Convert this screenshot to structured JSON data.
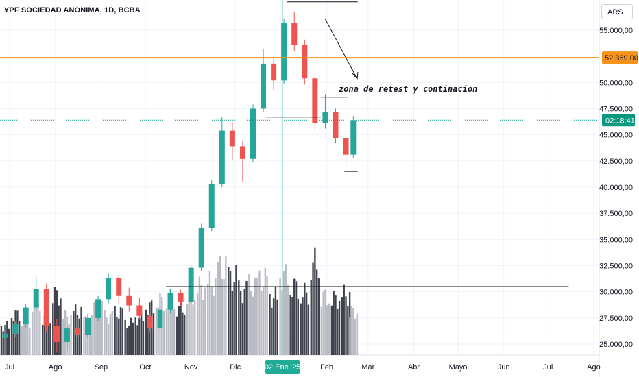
{
  "header": {
    "title": "YPF SOCIEDAD ANONIMA, 1D, BCBA",
    "currency": "ARS"
  },
  "annotations": {
    "text": "zona de retest y continacion"
  },
  "chart_data": {
    "type": "candlestick",
    "title": "YPF SOCIEDAD ANONIMA, 1D, BCBA",
    "ylim": [
      23800,
      58500
    ],
    "y_ticks": [
      {
        "value": 55000,
        "label": "55.000,00"
      },
      {
        "value": 50000,
        "label": "50.000,00"
      },
      {
        "value": 47500,
        "label": "47.500,00"
      },
      {
        "value": 45000,
        "label": "45.000,00"
      },
      {
        "value": 42500,
        "label": "42.500,00"
      },
      {
        "value": 40000,
        "label": "40.000,00"
      },
      {
        "value": 37500,
        "label": "37.500,00"
      },
      {
        "value": 35000,
        "label": "35.000,00"
      },
      {
        "value": 32500,
        "label": "32.500,00"
      },
      {
        "value": 30000,
        "label": "30.000,00"
      },
      {
        "value": 27500,
        "label": "27.500,00"
      },
      {
        "value": 25000,
        "label": "25.000,00"
      }
    ],
    "x_ticks": [
      "Jul",
      "Ago",
      "Sep",
      "Oct",
      "Nov",
      "Dic",
      "Feb",
      "Mar",
      "Abr",
      "Mayo",
      "Jun",
      "Jul",
      "Ago"
    ],
    "crosshair_date_label": "02 Ene '25",
    "horizontal_level": {
      "value": 52369,
      "label": "52.369,00",
      "color": "#f7931a"
    },
    "last_price_tag": {
      "label": "02:18:41",
      "value": 46400,
      "color": "#089981"
    },
    "drawn_levels": [
      {
        "value": 57700,
        "x_from": "2025-01-05",
        "x_to": "2025-02-22"
      },
      {
        "value": 48600,
        "x_from": "2025-01-28",
        "x_to": "2025-02-15"
      },
      {
        "value": 46700,
        "x_from": "2024-12-22",
        "x_to": "2025-01-28"
      },
      {
        "value": 41500,
        "x_from": "2025-02-13",
        "x_to": "2025-02-22"
      },
      {
        "value": 30500,
        "x_from": "2024-10-15",
        "x_to": "2025-07-15"
      }
    ],
    "colors": {
      "up": "#26a69a",
      "down": "#ef5350",
      "level": "#f7931a"
    },
    "candles": [
      {
        "d": "2024-06-28",
        "o": 25600,
        "h": 26300,
        "l": 25100,
        "c": 26000
      },
      {
        "d": "2024-07-05",
        "o": 26000,
        "h": 27200,
        "l": 25700,
        "c": 26900
      },
      {
        "d": "2024-07-12",
        "o": 26900,
        "h": 28800,
        "l": 26600,
        "c": 28500
      },
      {
        "d": "2024-07-19",
        "o": 28500,
        "h": 31500,
        "l": 28200,
        "c": 30300
      },
      {
        "d": "2024-07-26",
        "o": 30300,
        "h": 30800,
        "l": 26200,
        "c": 26700
      },
      {
        "d": "2024-08-02",
        "o": 26700,
        "h": 27400,
        "l": 24200,
        "c": 25200
      },
      {
        "d": "2024-08-09",
        "o": 25200,
        "h": 26700,
        "l": 24500,
        "c": 26500
      },
      {
        "d": "2024-08-16",
        "o": 26500,
        "h": 27600,
        "l": 25700,
        "c": 25900
      },
      {
        "d": "2024-08-23",
        "o": 25900,
        "h": 27900,
        "l": 25600,
        "c": 27500
      },
      {
        "d": "2024-08-30",
        "o": 27500,
        "h": 29600,
        "l": 27200,
        "c": 29300
      },
      {
        "d": "2024-09-06",
        "o": 29300,
        "h": 31800,
        "l": 28900,
        "c": 31300
      },
      {
        "d": "2024-09-13",
        "o": 31300,
        "h": 31600,
        "l": 28900,
        "c": 29600
      },
      {
        "d": "2024-09-20",
        "o": 29600,
        "h": 30400,
        "l": 28100,
        "c": 28700
      },
      {
        "d": "2024-09-27",
        "o": 28700,
        "h": 29400,
        "l": 27300,
        "c": 27700
      },
      {
        "d": "2024-10-04",
        "o": 27700,
        "h": 28000,
        "l": 26100,
        "c": 26500
      },
      {
        "d": "2024-10-11",
        "o": 26500,
        "h": 28600,
        "l": 26200,
        "c": 28300
      },
      {
        "d": "2024-10-18",
        "o": 28300,
        "h": 30300,
        "l": 28000,
        "c": 29900
      },
      {
        "d": "2024-10-25",
        "o": 29900,
        "h": 30200,
        "l": 28600,
        "c": 29000
      },
      {
        "d": "2024-11-01",
        "o": 29000,
        "h": 32600,
        "l": 28800,
        "c": 32300
      },
      {
        "d": "2024-11-08",
        "o": 32300,
        "h": 36500,
        "l": 32000,
        "c": 36100
      },
      {
        "d": "2024-11-15",
        "o": 36100,
        "h": 40700,
        "l": 35800,
        "c": 40300
      },
      {
        "d": "2024-11-22",
        "o": 40300,
        "h": 46700,
        "l": 40000,
        "c": 45400
      },
      {
        "d": "2024-11-29",
        "o": 45400,
        "h": 46200,
        "l": 42600,
        "c": 43900
      },
      {
        "d": "2024-12-06",
        "o": 43900,
        "h": 44400,
        "l": 40500,
        "c": 42700
      },
      {
        "d": "2024-12-13",
        "o": 42700,
        "h": 47900,
        "l": 42400,
        "c": 47500
      },
      {
        "d": "2024-12-20",
        "o": 47500,
        "h": 53200,
        "l": 47200,
        "c": 51800
      },
      {
        "d": "2024-12-27",
        "o": 51800,
        "h": 52300,
        "l": 49300,
        "c": 50200
      },
      {
        "d": "2025-01-03",
        "o": 50200,
        "h": 56100,
        "l": 49900,
        "c": 55700
      },
      {
        "d": "2025-01-10",
        "o": 55700,
        "h": 56700,
        "l": 53000,
        "c": 53600
      },
      {
        "d": "2025-01-17",
        "o": 53600,
        "h": 54100,
        "l": 49800,
        "c": 50400
      },
      {
        "d": "2025-01-24",
        "o": 50400,
        "h": 50800,
        "l": 45400,
        "c": 46100
      },
      {
        "d": "2025-01-31",
        "o": 46100,
        "h": 48900,
        "l": 45600,
        "c": 47200
      },
      {
        "d": "2025-02-07",
        "o": 47200,
        "h": 47500,
        "l": 44200,
        "c": 44700
      },
      {
        "d": "2025-02-14",
        "o": 44700,
        "h": 45400,
        "l": 41500,
        "c": 43100
      },
      {
        "d": "2025-02-19",
        "o": 43100,
        "h": 46800,
        "l": 42800,
        "c": 46400
      }
    ],
    "volume": [
      {
        "d": "2024-06-28",
        "v": 0.3,
        "up": false
      },
      {
        "d": "2024-07-05",
        "v": 0.42,
        "up": false
      },
      {
        "d": "2024-07-12",
        "v": 0.35,
        "up": true
      },
      {
        "d": "2024-07-19",
        "v": 0.55,
        "up": true
      },
      {
        "d": "2024-07-26",
        "v": 0.38,
        "up": false
      },
      {
        "d": "2024-08-02",
        "v": 0.62,
        "up": false
      },
      {
        "d": "2024-08-09",
        "v": 0.4,
        "up": true
      },
      {
        "d": "2024-08-16",
        "v": 0.45,
        "up": false
      },
      {
        "d": "2024-08-23",
        "v": 0.36,
        "up": true
      },
      {
        "d": "2024-08-30",
        "v": 0.48,
        "up": true
      },
      {
        "d": "2024-09-06",
        "v": 0.4,
        "up": true
      },
      {
        "d": "2024-09-13",
        "v": 0.44,
        "up": false
      },
      {
        "d": "2024-09-20",
        "v": 0.33,
        "up": false
      },
      {
        "d": "2024-09-27",
        "v": 0.38,
        "up": false
      },
      {
        "d": "2024-10-04",
        "v": 0.5,
        "up": false
      },
      {
        "d": "2024-10-11",
        "v": 0.56,
        "up": true
      },
      {
        "d": "2024-10-18",
        "v": 0.58,
        "up": true
      },
      {
        "d": "2024-10-25",
        "v": 0.49,
        "up": false
      },
      {
        "d": "2024-11-01",
        "v": 0.62,
        "up": true
      },
      {
        "d": "2024-11-08",
        "v": 0.7,
        "up": true
      },
      {
        "d": "2024-11-15",
        "v": 0.74,
        "up": true
      },
      {
        "d": "2024-11-22",
        "v": 0.9,
        "up": true
      },
      {
        "d": "2024-11-29",
        "v": 0.8,
        "up": false
      },
      {
        "d": "2024-12-06",
        "v": 0.66,
        "up": false
      },
      {
        "d": "2024-12-13",
        "v": 0.72,
        "up": true
      },
      {
        "d": "2024-12-20",
        "v": 0.78,
        "up": true
      },
      {
        "d": "2024-12-27",
        "v": 0.6,
        "up": false
      },
      {
        "d": "2025-01-03",
        "v": 0.82,
        "up": true
      },
      {
        "d": "2025-01-10",
        "v": 0.7,
        "up": false
      },
      {
        "d": "2025-01-17",
        "v": 0.64,
        "up": false
      },
      {
        "d": "2025-01-24",
        "v": 0.95,
        "up": false
      },
      {
        "d": "2025-01-31",
        "v": 0.6,
        "up": true
      },
      {
        "d": "2025-02-07",
        "v": 0.58,
        "up": false
      },
      {
        "d": "2025-02-14",
        "v": 0.62,
        "up": false
      },
      {
        "d": "2025-02-19",
        "v": 0.45,
        "up": true
      }
    ]
  }
}
